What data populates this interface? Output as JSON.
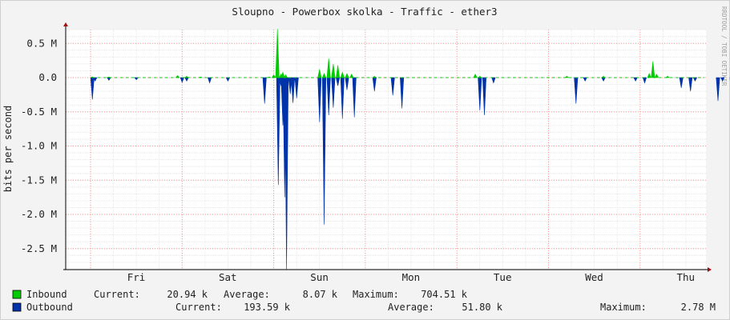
{
  "chart_data": {
    "type": "area",
    "title": "Sloupno - Powerbox skolka - Traffic - ether3",
    "ylabel": "bits per second",
    "watermark": "RRDTOOL / TOBI OETIKER",
    "ylim": [
      -2.8,
      0.75
    ],
    "yticks": [
      {
        "v": 0.5,
        "label": "0.5 M"
      },
      {
        "v": 0.0,
        "label": "0.0"
      },
      {
        "v": -0.5,
        "label": "-0.5 M"
      },
      {
        "v": -1.0,
        "label": "-1.0 M"
      },
      {
        "v": -1.5,
        "label": "-1.5 M"
      },
      {
        "v": -2.0,
        "label": "-2.0 M"
      },
      {
        "v": -2.5,
        "label": "-2.5 M"
      }
    ],
    "xlim": [
      0,
      7
    ],
    "xticks": [
      "Fri",
      "Sat",
      "Sun",
      "Mon",
      "Tue",
      "Wed",
      "Thu"
    ],
    "grid": true,
    "colors": {
      "inbound": "#00cc00",
      "outbound": "#0033aa",
      "grid_major": "#ff9a9a",
      "grid_minor": "#e6e6e6"
    },
    "series": [
      {
        "name": "Inbound",
        "unit": "M bits/s",
        "points": [
          [
            0.02,
            0.01
          ],
          [
            0.2,
            0.01
          ],
          [
            0.95,
            0.03
          ],
          [
            1.05,
            0.02
          ],
          [
            1.2,
            0.01
          ],
          [
            1.95,
            0.01
          ],
          [
            2.0,
            0.04
          ],
          [
            2.04,
            0.71
          ],
          [
            2.08,
            0.05
          ],
          [
            2.1,
            0.08
          ],
          [
            2.13,
            0.04
          ],
          [
            2.5,
            0.12
          ],
          [
            2.55,
            0.06
          ],
          [
            2.6,
            0.28
          ],
          [
            2.65,
            0.2
          ],
          [
            2.7,
            0.18
          ],
          [
            2.75,
            0.08
          ],
          [
            2.8,
            0.06
          ],
          [
            2.85,
            0.05
          ],
          [
            3.1,
            0.02
          ],
          [
            4.2,
            0.05
          ],
          [
            4.25,
            0.02
          ],
          [
            5.2,
            0.02
          ],
          [
            5.6,
            0.02
          ],
          [
            6.1,
            0.06
          ],
          [
            6.14,
            0.24
          ],
          [
            6.18,
            0.05
          ],
          [
            6.3,
            0.02
          ]
        ]
      },
      {
        "name": "Outbound",
        "unit": "M bits/s",
        "points": [
          [
            0.02,
            -0.32
          ],
          [
            0.05,
            -0.05
          ],
          [
            0.2,
            -0.04
          ],
          [
            0.5,
            -0.03
          ],
          [
            1.0,
            -0.07
          ],
          [
            1.05,
            -0.05
          ],
          [
            1.3,
            -0.08
          ],
          [
            1.5,
            -0.05
          ],
          [
            1.9,
            -0.38
          ],
          [
            2.05,
            -1.57
          ],
          [
            2.08,
            -0.12
          ],
          [
            2.1,
            -0.7
          ],
          [
            2.12,
            -1.75
          ],
          [
            2.14,
            -2.8
          ],
          [
            2.18,
            -0.24
          ],
          [
            2.21,
            -0.37
          ],
          [
            2.25,
            -0.3
          ],
          [
            2.5,
            -0.65
          ],
          [
            2.55,
            -2.15
          ],
          [
            2.6,
            -0.55
          ],
          [
            2.65,
            -0.44
          ],
          [
            2.7,
            -0.12
          ],
          [
            2.75,
            -0.6
          ],
          [
            2.8,
            -0.18
          ],
          [
            2.88,
            -0.58
          ],
          [
            3.1,
            -0.2
          ],
          [
            3.3,
            -0.26
          ],
          [
            3.4,
            -0.45
          ],
          [
            4.25,
            -0.48
          ],
          [
            4.3,
            -0.55
          ],
          [
            4.4,
            -0.08
          ],
          [
            5.3,
            -0.38
          ],
          [
            5.4,
            -0.05
          ],
          [
            5.6,
            -0.05
          ],
          [
            5.95,
            -0.05
          ],
          [
            6.05,
            -0.08
          ],
          [
            6.45,
            -0.15
          ],
          [
            6.55,
            -0.2
          ],
          [
            6.6,
            -0.05
          ],
          [
            6.85,
            -0.34
          ],
          [
            6.9,
            -0.05
          ],
          [
            7.0,
            -0.2
          ]
        ]
      }
    ]
  },
  "legend": [
    {
      "name": "Inbound",
      "color": "#00cc00",
      "current_label": "Current:",
      "current_value": "20.94 k",
      "average_label": "Average:",
      "average_value": "8.07 k",
      "maximum_label": "Maximum:",
      "maximum_value": "704.51 k"
    },
    {
      "name": "Outbound",
      "color": "#0033aa",
      "current_label": "Current:",
      "current_value": "193.59 k",
      "average_label": "Average:",
      "average_value": "51.80 k",
      "maximum_label": "Maximum:",
      "maximum_value": "2.78 M"
    }
  ]
}
